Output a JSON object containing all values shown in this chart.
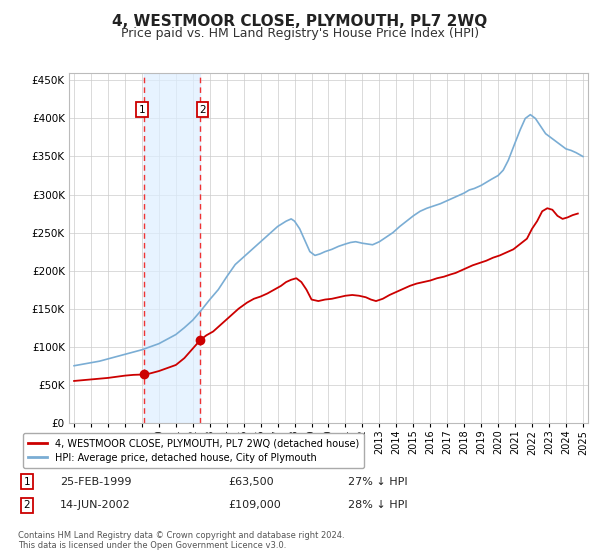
{
  "title": "4, WESTMOOR CLOSE, PLYMOUTH, PL7 2WQ",
  "subtitle": "Price paid vs. HM Land Registry's House Price Index (HPI)",
  "title_fontsize": 11,
  "subtitle_fontsize": 9,
  "background_color": "#ffffff",
  "plot_bg_color": "#ffffff",
  "grid_color": "#cccccc",
  "xlim": [
    1994.7,
    2025.3
  ],
  "ylim": [
    0,
    460000
  ],
  "yticks": [
    0,
    50000,
    100000,
    150000,
    200000,
    250000,
    300000,
    350000,
    400000,
    450000
  ],
  "ytick_labels": [
    "£0",
    "£50K",
    "£100K",
    "£150K",
    "£200K",
    "£250K",
    "£300K",
    "£350K",
    "£400K",
    "£450K"
  ],
  "xticks": [
    1995,
    1996,
    1997,
    1998,
    1999,
    2000,
    2001,
    2002,
    2003,
    2004,
    2005,
    2006,
    2007,
    2008,
    2009,
    2010,
    2011,
    2012,
    2013,
    2014,
    2015,
    2016,
    2017,
    2018,
    2019,
    2020,
    2021,
    2022,
    2023,
    2024,
    2025
  ],
  "red_line_color": "#cc0000",
  "blue_line_color": "#7aadd4",
  "marker_color": "#cc0000",
  "vline1_x": 1999.12,
  "vline2_x": 2002.45,
  "vline_color": "#ee3333",
  "vshade_color": "#ddeeff",
  "marker1_x": 1999.12,
  "marker1_y": 63500,
  "marker2_x": 2002.45,
  "marker2_y": 109000,
  "legend_label_red": "4, WESTMOOR CLOSE, PLYMOUTH, PL7 2WQ (detached house)",
  "legend_label_blue": "HPI: Average price, detached house, City of Plymouth",
  "table_row1": [
    "1",
    "25-FEB-1999",
    "£63,500",
    "27% ↓ HPI"
  ],
  "table_row2": [
    "2",
    "14-JUN-2002",
    "£109,000",
    "28% ↓ HPI"
  ],
  "footer_text": "Contains HM Land Registry data © Crown copyright and database right 2024.\nThis data is licensed under the Open Government Licence v3.0.",
  "red_line_data": {
    "x": [
      1995.0,
      1995.5,
      1996.0,
      1996.5,
      1997.0,
      1997.5,
      1998.0,
      1998.5,
      1999.12,
      1999.5,
      2000.0,
      2000.5,
      2001.0,
      2001.5,
      2002.45,
      2002.8,
      2003.2,
      2003.7,
      2004.2,
      2004.7,
      2005.2,
      2005.6,
      2006.0,
      2006.4,
      2006.8,
      2007.2,
      2007.5,
      2007.8,
      2008.1,
      2008.4,
      2008.7,
      2009.0,
      2009.4,
      2009.8,
      2010.2,
      2010.6,
      2011.0,
      2011.4,
      2011.8,
      2012.2,
      2012.5,
      2012.8,
      2013.2,
      2013.6,
      2014.0,
      2014.4,
      2014.8,
      2015.2,
      2015.6,
      2016.0,
      2016.4,
      2016.8,
      2017.2,
      2017.5,
      2017.8,
      2018.1,
      2018.5,
      2018.9,
      2019.3,
      2019.7,
      2020.1,
      2020.5,
      2020.9,
      2021.3,
      2021.7,
      2022.0,
      2022.3,
      2022.6,
      2022.9,
      2023.2,
      2023.5,
      2023.8,
      2024.1,
      2024.4,
      2024.7
    ],
    "y": [
      55000,
      56000,
      57000,
      58000,
      59000,
      60500,
      62000,
      63000,
      63500,
      65000,
      68000,
      72000,
      76000,
      85000,
      109000,
      115000,
      120000,
      130000,
      140000,
      150000,
      158000,
      163000,
      166000,
      170000,
      175000,
      180000,
      185000,
      188000,
      190000,
      185000,
      175000,
      162000,
      160000,
      162000,
      163000,
      165000,
      167000,
      168000,
      167000,
      165000,
      162000,
      160000,
      163000,
      168000,
      172000,
      176000,
      180000,
      183000,
      185000,
      187000,
      190000,
      192000,
      195000,
      197000,
      200000,
      203000,
      207000,
      210000,
      213000,
      217000,
      220000,
      224000,
      228000,
      235000,
      242000,
      255000,
      265000,
      278000,
      282000,
      280000,
      272000,
      268000,
      270000,
      273000,
      275000
    ]
  },
  "blue_line_data": {
    "x": [
      1995.0,
      1995.5,
      1996.0,
      1996.5,
      1997.0,
      1997.5,
      1998.0,
      1998.5,
      1999.0,
      1999.5,
      2000.0,
      2000.5,
      2001.0,
      2001.5,
      2002.0,
      2002.5,
      2003.0,
      2003.5,
      2004.0,
      2004.5,
      2005.0,
      2005.5,
      2006.0,
      2006.5,
      2007.0,
      2007.5,
      2007.8,
      2008.0,
      2008.3,
      2008.6,
      2008.9,
      2009.2,
      2009.5,
      2009.8,
      2010.2,
      2010.6,
      2011.0,
      2011.3,
      2011.6,
      2012.0,
      2012.3,
      2012.6,
      2013.0,
      2013.4,
      2013.8,
      2014.2,
      2014.6,
      2015.0,
      2015.4,
      2015.8,
      2016.2,
      2016.6,
      2017.0,
      2017.3,
      2017.6,
      2018.0,
      2018.3,
      2018.6,
      2019.0,
      2019.3,
      2019.6,
      2020.0,
      2020.3,
      2020.6,
      2021.0,
      2021.3,
      2021.6,
      2021.9,
      2022.2,
      2022.5,
      2022.8,
      2023.1,
      2023.4,
      2023.7,
      2024.0,
      2024.3,
      2024.6,
      2025.0
    ],
    "y": [
      75000,
      77000,
      79000,
      81000,
      84000,
      87000,
      90000,
      93000,
      96000,
      100000,
      104000,
      110000,
      116000,
      125000,
      135000,
      148000,
      162000,
      175000,
      192000,
      208000,
      218000,
      228000,
      238000,
      248000,
      258000,
      265000,
      268000,
      265000,
      255000,
      240000,
      225000,
      220000,
      222000,
      225000,
      228000,
      232000,
      235000,
      237000,
      238000,
      236000,
      235000,
      234000,
      238000,
      244000,
      250000,
      258000,
      265000,
      272000,
      278000,
      282000,
      285000,
      288000,
      292000,
      295000,
      298000,
      302000,
      306000,
      308000,
      312000,
      316000,
      320000,
      325000,
      332000,
      345000,
      368000,
      385000,
      400000,
      405000,
      400000,
      390000,
      380000,
      375000,
      370000,
      365000,
      360000,
      358000,
      355000,
      350000
    ]
  }
}
